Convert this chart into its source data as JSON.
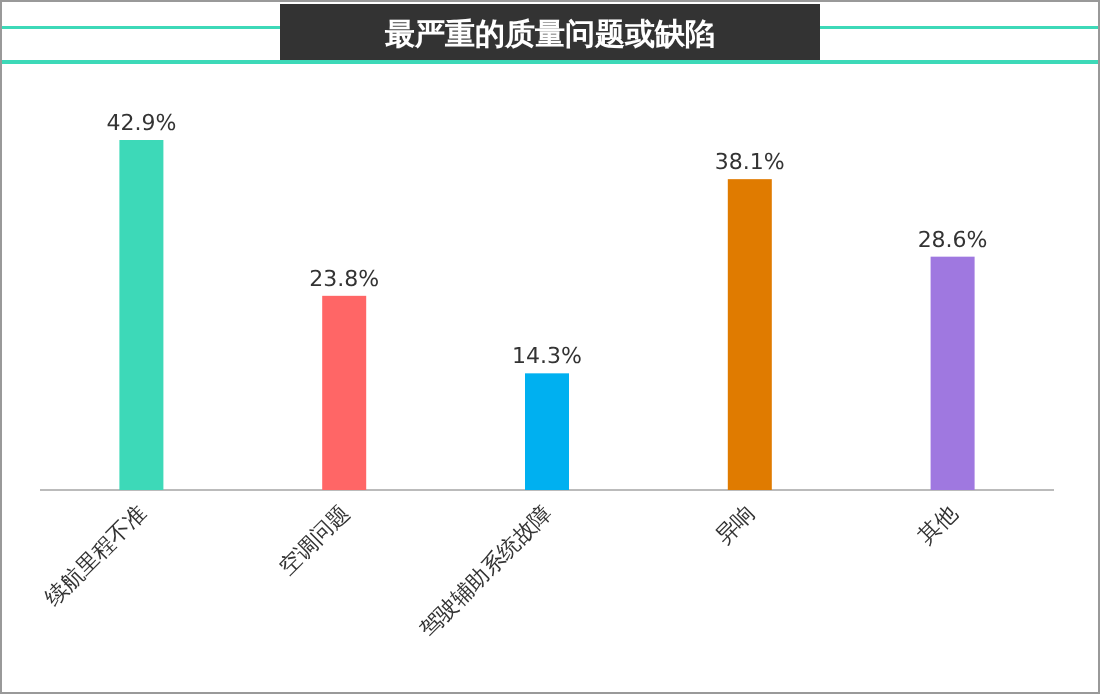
{
  "chart_data": {
    "type": "bar",
    "title": "最严重的质量问题或缺陷",
    "categories": [
      "续航里程不准",
      "空调问题",
      "驾驶辅助系统故障",
      "异响",
      "其他"
    ],
    "values": [
      42.9,
      23.8,
      14.3,
      38.1,
      28.6
    ],
    "colors": [
      "#3dd9b8",
      "#ff6666",
      "#00b0f0",
      "#e07b00",
      "#9f78e0"
    ],
    "value_labels": [
      "42.9%",
      "23.8%",
      "14.3%",
      "38.1%",
      "28.6%"
    ]
  }
}
